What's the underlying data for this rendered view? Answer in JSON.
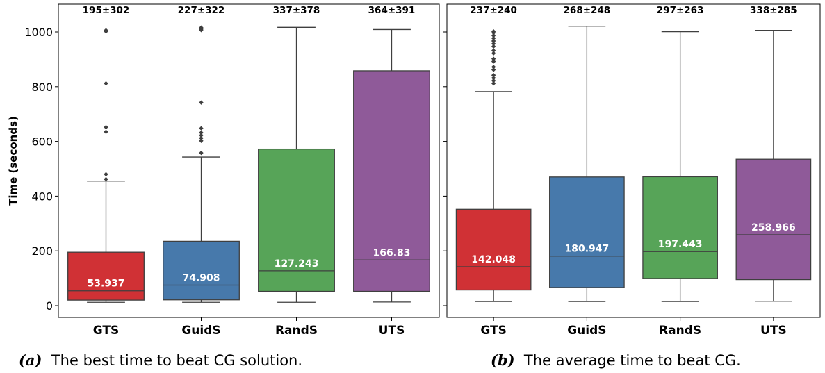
{
  "ylabel": "Time (seconds)",
  "captions": [
    {
      "tag": "(a)",
      "text": "The best time to beat CG solution."
    },
    {
      "tag": "(b)",
      "text": "The average time to beat CG."
    }
  ],
  "colors": {
    "GTS": "#d03135",
    "GuidS": "#4779ab",
    "RandS": "#57a458",
    "UTS": "#8f5a99",
    "whisker": "#3f3f3f",
    "median_text": "#ffffff"
  },
  "chart_data": [
    {
      "type": "box",
      "panel": "a",
      "categories": [
        "GTS",
        "GuidS",
        "RandS",
        "UTS"
      ],
      "ylim": [
        -25,
        1065
      ],
      "yticks": [
        0,
        200,
        400,
        600,
        800,
        1000
      ],
      "ylabel": "Time (seconds)",
      "grid": false,
      "series": [
        {
          "category": "GTS",
          "whisker_low": 12,
          "q1": 20,
          "median": 53.937,
          "q3": 195,
          "whisker_high": 455,
          "outliers": [
            462,
            480,
            635,
            652,
            812,
            1002,
            1006
          ],
          "median_label": "53.937",
          "top_label": "195±302"
        },
        {
          "category": "GuidS",
          "whisker_low": 12,
          "q1": 21,
          "median": 74.908,
          "q3": 235,
          "whisker_high": 543,
          "outliers": [
            558,
            602,
            612,
            622,
            632,
            648,
            742,
            1007,
            1010,
            1013,
            1016
          ],
          "median_label": "74.908",
          "top_label": "227±322"
        },
        {
          "category": "RandS",
          "whisker_low": 12,
          "q1": 52,
          "median": 127.243,
          "q3": 572,
          "whisker_high": 1017,
          "outliers": [],
          "median_label": "127.243",
          "top_label": "337±378"
        },
        {
          "category": "UTS",
          "whisker_low": 13,
          "q1": 52,
          "median": 166.83,
          "q3": 858,
          "whisker_high": 1009,
          "outliers": [],
          "median_label": "166.83",
          "top_label": "364±391"
        }
      ]
    },
    {
      "type": "box",
      "panel": "b",
      "categories": [
        "GTS",
        "GuidS",
        "RandS",
        "UTS"
      ],
      "ylim": [
        -25,
        1065
      ],
      "grid": false,
      "series": [
        {
          "category": "GTS",
          "whisker_low": 15,
          "q1": 57,
          "median": 142.048,
          "q3": 352,
          "whisker_high": 782,
          "outliers": [
            812,
            822,
            832,
            842,
            862,
            872,
            892,
            902,
            922,
            932,
            947,
            957,
            967,
            977,
            987,
            997,
            1002
          ],
          "median_label": "142.048",
          "top_label": "237±240"
        },
        {
          "category": "GuidS",
          "whisker_low": 15,
          "q1": 66,
          "median": 180.947,
          "q3": 470,
          "whisker_high": 1021,
          "outliers": [],
          "median_label": "180.947",
          "top_label": "268±248"
        },
        {
          "category": "RandS",
          "whisker_low": 15,
          "q1": 99,
          "median": 197.443,
          "q3": 471,
          "whisker_high": 1001,
          "outliers": [],
          "median_label": "197.443",
          "top_label": "297±263"
        },
        {
          "category": "UTS",
          "whisker_low": 16,
          "q1": 95,
          "median": 258.966,
          "q3": 535,
          "whisker_high": 1006,
          "outliers": [],
          "median_label": "258.966",
          "top_label": "338±285"
        }
      ]
    }
  ]
}
